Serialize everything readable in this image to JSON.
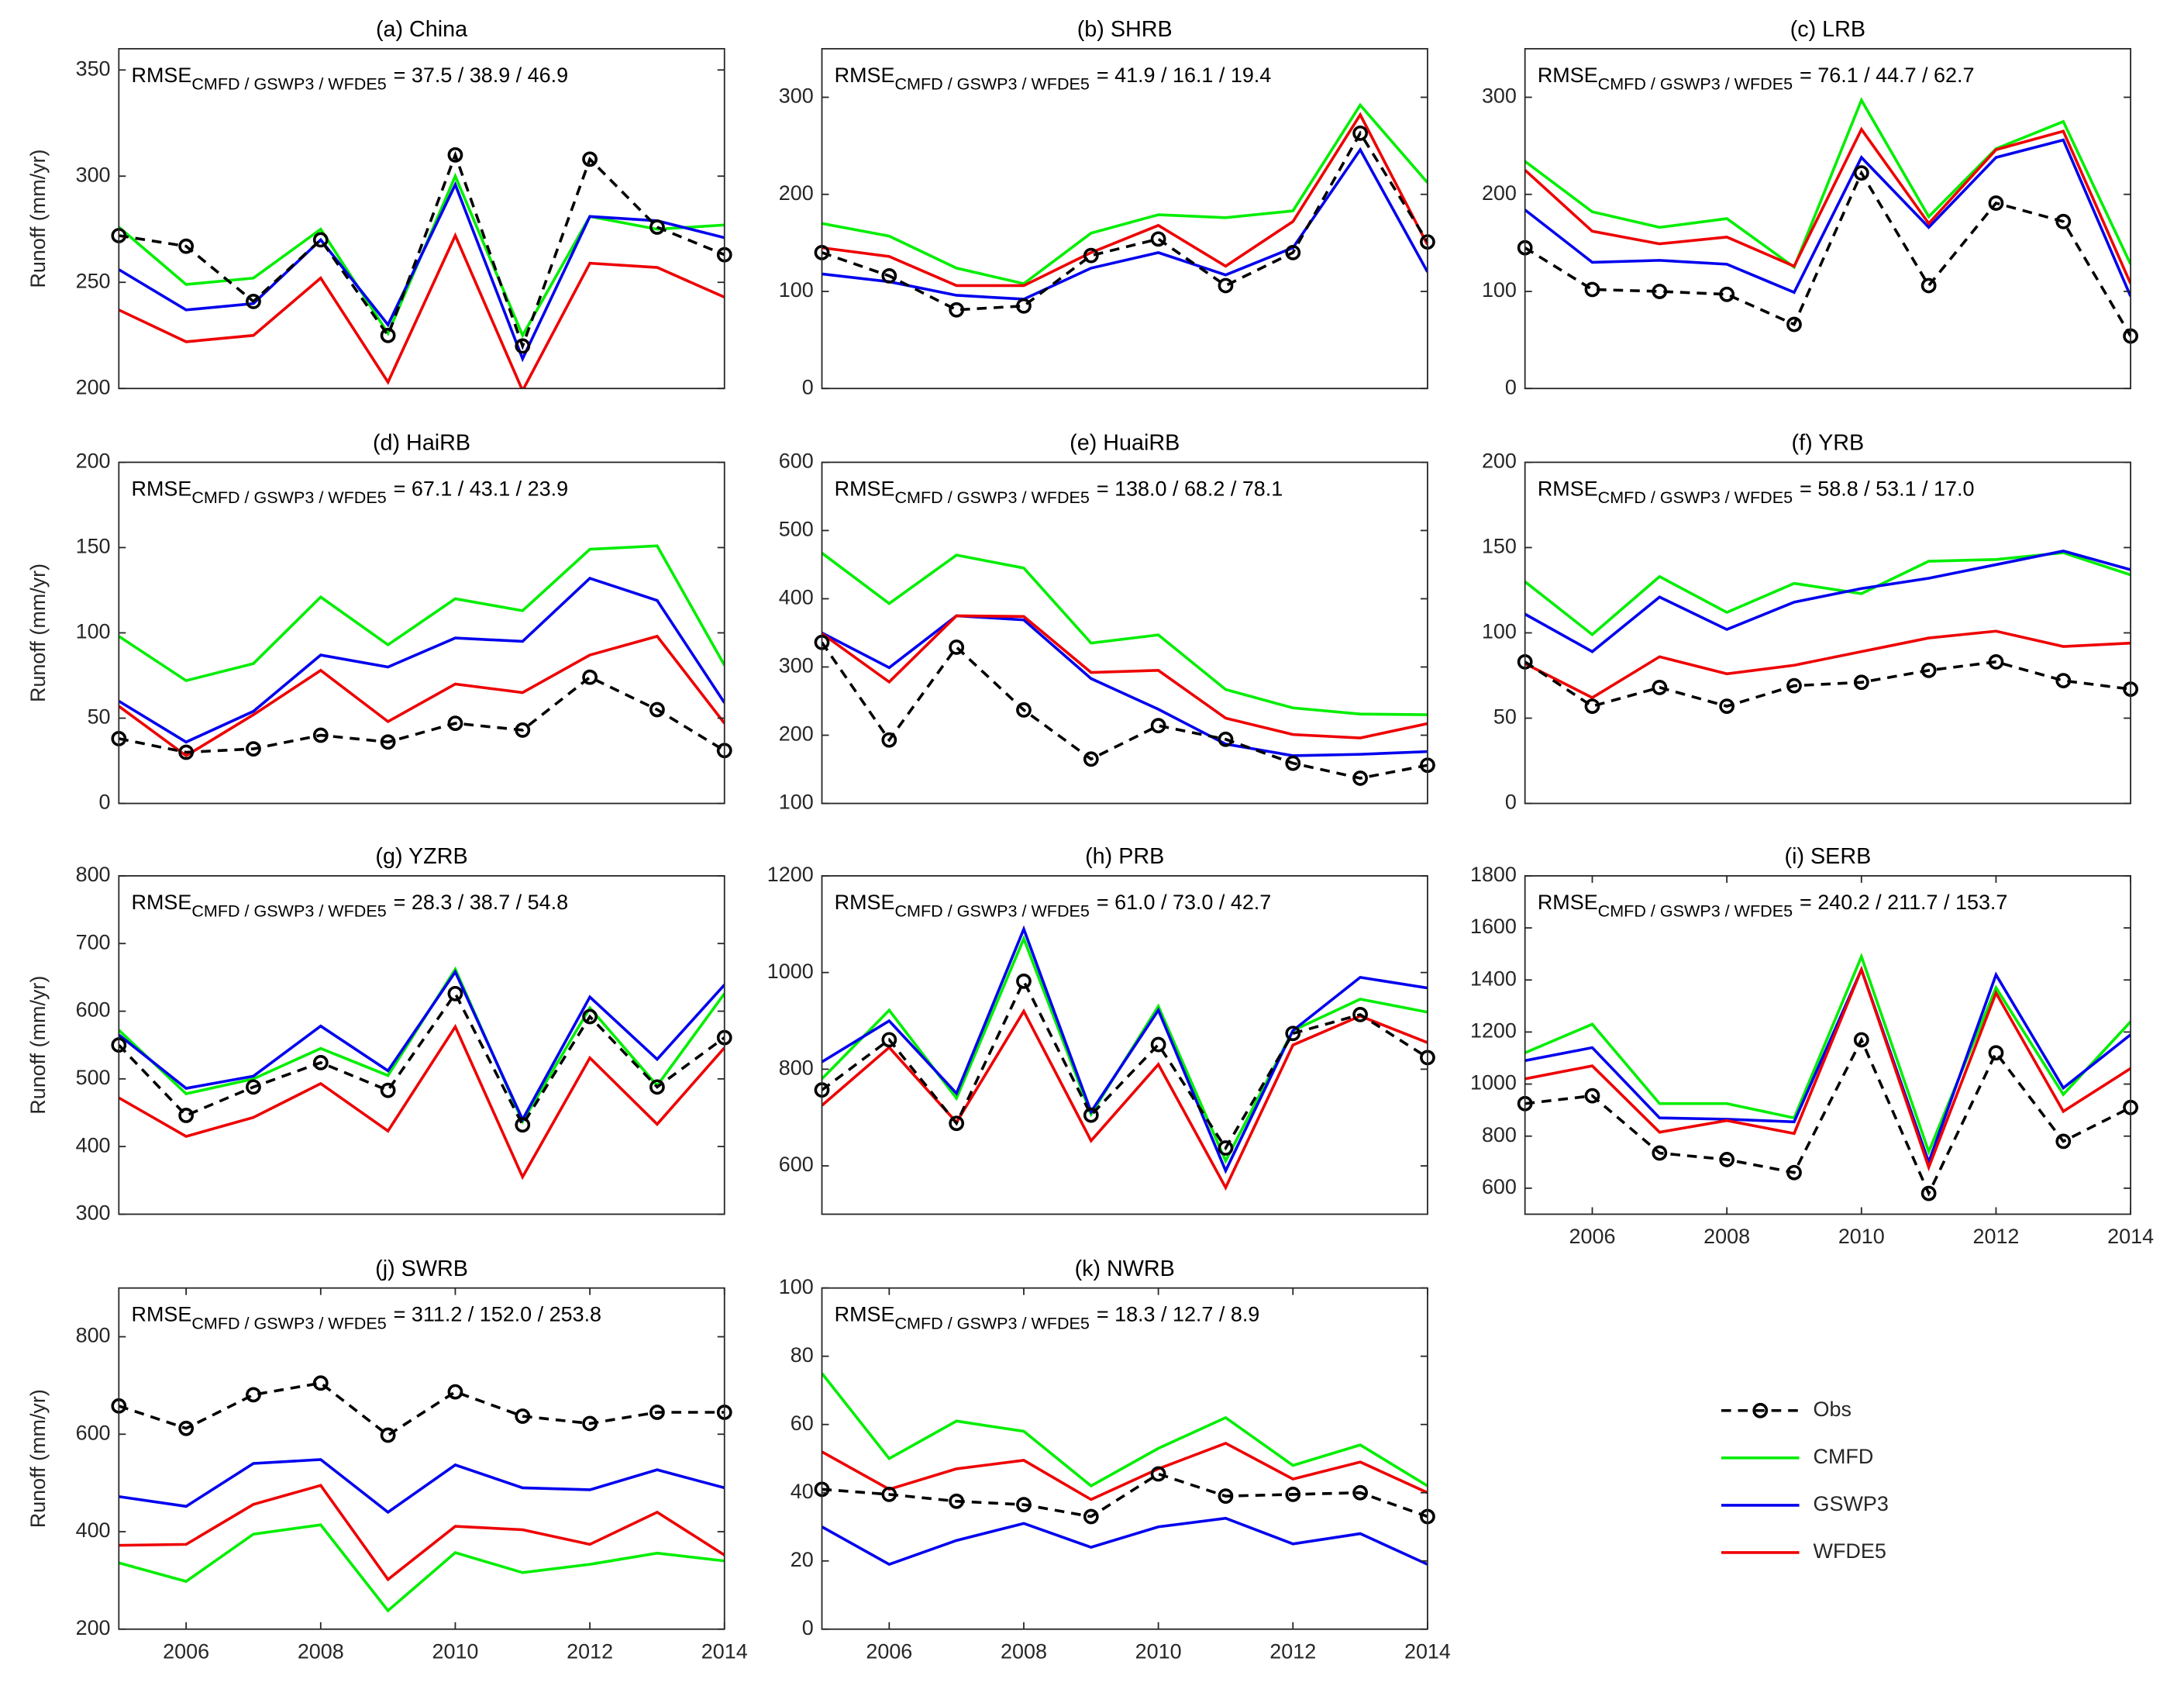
{
  "chart_data": [
    {
      "type": "line",
      "title": "(a) China",
      "ylabel": "Runoff (mm/yr)",
      "annotation": {
        "main": "RMSE",
        "sub": "CMFD / GSWP3 / WFDE5",
        "text": "= 37.5 / 38.9 / 46.9"
      },
      "x": [
        2005,
        2006,
        2007,
        2008,
        2009,
        2010,
        2011,
        2012,
        2013,
        2014
      ],
      "xlim": [
        2005,
        2014
      ],
      "ylim": [
        200,
        360
      ],
      "yticks": [
        200,
        250,
        300,
        350
      ],
      "series": [
        {
          "name": "Obs",
          "color": "#000000",
          "linestyle": "--",
          "marker": "o",
          "values": [
            272,
            267,
            241,
            270,
            225,
            310,
            220,
            308,
            276,
            263
          ]
        },
        {
          "name": "CMFD",
          "color": "#00ee00",
          "values": [
            276,
            249,
            252,
            275,
            226,
            300,
            225,
            281,
            275,
            277
          ]
        },
        {
          "name": "GSWP3",
          "color": "#0000ee",
          "values": [
            256,
            237,
            240,
            270,
            230,
            296,
            214,
            281,
            279,
            271
          ]
        },
        {
          "name": "WFDE5",
          "color": "#ee0000",
          "values": [
            237,
            222,
            225,
            252,
            203,
            272,
            199,
            259,
            257,
            243
          ]
        }
      ]
    },
    {
      "type": "line",
      "title": "(b) SHRB",
      "annotation": {
        "main": "RMSE",
        "sub": "CMFD / GSWP3 / WFDE5",
        "text": "= 41.9 / 16.1 / 19.4"
      },
      "x": [
        2005,
        2006,
        2007,
        2008,
        2009,
        2010,
        2011,
        2012,
        2013,
        2014
      ],
      "xlim": [
        2005,
        2014
      ],
      "ylim": [
        0,
        350
      ],
      "yticks": [
        0,
        100,
        200,
        300
      ],
      "series": [
        {
          "name": "Obs",
          "color": "#000000",
          "linestyle": "--",
          "marker": "o",
          "values": [
            140,
            116,
            81,
            85,
            137,
            154,
            106,
            140,
            263,
            151
          ]
        },
        {
          "name": "CMFD",
          "color": "#00ee00",
          "values": [
            170,
            157,
            124,
            108,
            160,
            179,
            176,
            183,
            292,
            212
          ]
        },
        {
          "name": "GSWP3",
          "color": "#0000ee",
          "values": [
            118,
            110,
            96,
            92,
            124,
            140,
            117,
            145,
            246,
            120
          ]
        },
        {
          "name": "WFDE5",
          "color": "#ee0000",
          "values": [
            145,
            136,
            106,
            106,
            140,
            168,
            126,
            172,
            282,
            148
          ]
        }
      ]
    },
    {
      "type": "line",
      "title": "(c) LRB",
      "annotation": {
        "main": "RMSE",
        "sub": "CMFD / GSWP3 / WFDE5",
        "text": "= 76.1 / 44.7 / 62.7"
      },
      "x": [
        2005,
        2006,
        2007,
        2008,
        2009,
        2010,
        2011,
        2012,
        2013,
        2014
      ],
      "xlim": [
        2005,
        2014
      ],
      "ylim": [
        0,
        350
      ],
      "yticks": [
        0,
        100,
        200,
        300
      ],
      "series": [
        {
          "name": "Obs",
          "color": "#000000",
          "linestyle": "--",
          "marker": "o",
          "values": [
            145,
            102,
            100,
            97,
            66,
            222,
            106,
            191,
            172,
            54
          ]
        },
        {
          "name": "CMFD",
          "color": "#00ee00",
          "values": [
            234,
            182,
            166,
            175,
            125,
            297,
            177,
            247,
            275,
            128
          ]
        },
        {
          "name": "GSWP3",
          "color": "#0000ee",
          "values": [
            184,
            130,
            132,
            128,
            99,
            238,
            166,
            238,
            256,
            95
          ]
        },
        {
          "name": "WFDE5",
          "color": "#ee0000",
          "values": [
            225,
            162,
            149,
            156,
            126,
            267,
            170,
            246,
            265,
            108
          ]
        }
      ]
    },
    {
      "type": "line",
      "title": "(d) HaiRB",
      "ylabel": "Runoff (mm/yr)",
      "annotation": {
        "main": "RMSE",
        "sub": "CMFD / GSWP3 / WFDE5",
        "text": "= 67.1 / 43.1 / 23.9"
      },
      "x": [
        2005,
        2006,
        2007,
        2008,
        2009,
        2010,
        2011,
        2012,
        2013,
        2014
      ],
      "xlim": [
        2005,
        2014
      ],
      "ylim": [
        0,
        200
      ],
      "yticks": [
        0,
        50,
        100,
        150,
        200
      ],
      "series": [
        {
          "name": "Obs",
          "color": "#000000",
          "linestyle": "--",
          "marker": "o",
          "values": [
            38,
            30,
            32,
            40,
            36,
            47,
            43,
            74,
            55,
            31
          ]
        },
        {
          "name": "CMFD",
          "color": "#00ee00",
          "values": [
            98,
            72,
            82,
            121,
            93,
            120,
            113,
            149,
            151,
            81
          ]
        },
        {
          "name": "GSWP3",
          "color": "#0000ee",
          "values": [
            60,
            36,
            54,
            87,
            80,
            97,
            95,
            132,
            119,
            59
          ]
        },
        {
          "name": "WFDE5",
          "color": "#ee0000",
          "values": [
            57,
            28,
            52,
            78,
            48,
            70,
            65,
            87,
            98,
            47
          ]
        }
      ]
    },
    {
      "type": "line",
      "title": "(e) HuaiRB",
      "annotation": {
        "main": "RMSE",
        "sub": "CMFD / GSWP3 / WFDE5",
        "text": "= 138.0 / 68.2 / 78.1"
      },
      "x": [
        2005,
        2006,
        2007,
        2008,
        2009,
        2010,
        2011,
        2012,
        2013,
        2014
      ],
      "xlim": [
        2005,
        2014
      ],
      "ylim": [
        100,
        600
      ],
      "yticks": [
        100,
        200,
        300,
        400,
        500,
        600
      ],
      "series": [
        {
          "name": "Obs",
          "color": "#000000",
          "linestyle": "--",
          "marker": "o",
          "values": [
            336,
            193,
            329,
            237,
            165,
            214,
            194,
            159,
            137,
            156
          ]
        },
        {
          "name": "CMFD",
          "color": "#00ee00",
          "values": [
            467,
            393,
            464,
            445,
            335,
            347,
            267,
            240,
            231,
            230
          ]
        },
        {
          "name": "GSWP3",
          "color": "#0000ee",
          "values": [
            350,
            299,
            375,
            369,
            283,
            238,
            187,
            170,
            172,
            176
          ]
        },
        {
          "name": "WFDE5",
          "color": "#ee0000",
          "values": [
            349,
            278,
            375,
            374,
            292,
            295,
            225,
            201,
            196,
            217
          ]
        }
      ]
    },
    {
      "type": "line",
      "title": "(f) YRB",
      "annotation": {
        "main": "RMSE",
        "sub": "CMFD / GSWP3 / WFDE5",
        "text": "= 58.8 / 53.1 / 17.0"
      },
      "x": [
        2005,
        2006,
        2007,
        2008,
        2009,
        2010,
        2011,
        2012,
        2013,
        2014
      ],
      "xlim": [
        2005,
        2014
      ],
      "ylim": [
        0,
        200
      ],
      "yticks": [
        0,
        50,
        100,
        150,
        200
      ],
      "series": [
        {
          "name": "Obs",
          "color": "#000000",
          "linestyle": "--",
          "marker": "o",
          "values": [
            83,
            57,
            68,
            57,
            69,
            71,
            78,
            83,
            72,
            67
          ]
        },
        {
          "name": "CMFD",
          "color": "#00ee00",
          "values": [
            130,
            99,
            133,
            112,
            129,
            123,
            142,
            143,
            147,
            134
          ]
        },
        {
          "name": "GSWP3",
          "color": "#0000ee",
          "values": [
            111,
            89,
            121,
            102,
            118,
            126,
            132,
            140,
            148,
            137
          ]
        },
        {
          "name": "WFDE5",
          "color": "#ee0000",
          "values": [
            82,
            62,
            86,
            76,
            81,
            89,
            97,
            101,
            92,
            94
          ]
        }
      ]
    },
    {
      "type": "line",
      "title": "(g) YZRB",
      "ylabel": "Runoff (mm/yr)",
      "annotation": {
        "main": "RMSE",
        "sub": "CMFD / GSWP3 / WFDE5",
        "text": "= 28.3 / 38.7 / 54.8"
      },
      "x": [
        2005,
        2006,
        2007,
        2008,
        2009,
        2010,
        2011,
        2012,
        2013,
        2014
      ],
      "xlim": [
        2005,
        2014
      ],
      "ylim": [
        300,
        800
      ],
      "yticks": [
        300,
        400,
        500,
        600,
        700,
        800
      ],
      "series": [
        {
          "name": "Obs",
          "color": "#000000",
          "linestyle": "--",
          "marker": "o",
          "values": [
            550,
            446,
            488,
            524,
            483,
            626,
            432,
            592,
            488,
            561
          ]
        },
        {
          "name": "CMFD",
          "color": "#00ee00",
          "values": [
            572,
            478,
            500,
            545,
            505,
            662,
            437,
            605,
            490,
            626
          ]
        },
        {
          "name": "GSWP3",
          "color": "#0000ee",
          "values": [
            565,
            486,
            504,
            578,
            512,
            658,
            440,
            621,
            529,
            639
          ]
        },
        {
          "name": "WFDE5",
          "color": "#ee0000",
          "values": [
            472,
            415,
            443,
            493,
            423,
            577,
            355,
            531,
            433,
            546
          ]
        }
      ]
    },
    {
      "type": "line",
      "title": "(h) PRB",
      "annotation": {
        "main": "RMSE",
        "sub": "CMFD / GSWP3 / WFDE5",
        "text": "= 61.0 / 73.0 / 42.7"
      },
      "x": [
        2005,
        2006,
        2007,
        2008,
        2009,
        2010,
        2011,
        2012,
        2013,
        2014
      ],
      "xlim": [
        2005,
        2014
      ],
      "ylim": [
        500,
        1200
      ],
      "yticks": [
        600,
        800,
        1000,
        1200
      ],
      "series": [
        {
          "name": "Obs",
          "color": "#000000",
          "linestyle": "--",
          "marker": "o",
          "values": [
            757,
            861,
            688,
            982,
            705,
            851,
            637,
            874,
            913,
            824
          ]
        },
        {
          "name": "CMFD",
          "color": "#00ee00",
          "values": [
            780,
            922,
            740,
            1070,
            707,
            930,
            610,
            880,
            945,
            918
          ]
        },
        {
          "name": "GSWP3",
          "color": "#0000ee",
          "values": [
            815,
            900,
            750,
            1090,
            712,
            922,
            590,
            880,
            990,
            968
          ]
        },
        {
          "name": "WFDE5",
          "color": "#ee0000",
          "values": [
            725,
            845,
            690,
            920,
            652,
            810,
            555,
            850,
            910,
            855
          ]
        }
      ]
    },
    {
      "type": "line",
      "title": "(i) SERB",
      "annotation": {
        "main": "RMSE",
        "sub": "CMFD / GSWP3 / WFDE5",
        "text": "= 240.2 / 211.7 / 153.7"
      },
      "x": [
        2005,
        2006,
        2007,
        2008,
        2009,
        2010,
        2011,
        2012,
        2013,
        2014
      ],
      "xlim": [
        2005,
        2014
      ],
      "xticks": [
        2006,
        2008,
        2010,
        2012,
        2014
      ],
      "ylim": [
        500,
        1800
      ],
      "yticks": [
        600,
        800,
        1000,
        1200,
        1400,
        1600,
        1800
      ],
      "series": [
        {
          "name": "Obs",
          "color": "#000000",
          "linestyle": "--",
          "marker": "o",
          "values": [
            925,
            955,
            735,
            710,
            660,
            1170,
            580,
            1120,
            780,
            910
          ]
        },
        {
          "name": "CMFD",
          "color": "#00ee00",
          "values": [
            1120,
            1230,
            925,
            925,
            870,
            1490,
            740,
            1370,
            960,
            1240
          ]
        },
        {
          "name": "GSWP3",
          "color": "#0000ee",
          "values": [
            1090,
            1140,
            870,
            865,
            855,
            1440,
            700,
            1420,
            985,
            1190
          ]
        },
        {
          "name": "WFDE5",
          "color": "#ee0000",
          "values": [
            1020,
            1070,
            815,
            860,
            810,
            1440,
            680,
            1350,
            895,
            1060
          ]
        }
      ]
    },
    {
      "type": "line",
      "title": "(j) SWRB",
      "ylabel": "Runoff (mm/yr)",
      "annotation": {
        "main": "RMSE",
        "sub": "CMFD / GSWP3 / WFDE5",
        "text": "= 311.2 / 152.0 / 253.8"
      },
      "x": [
        2005,
        2006,
        2007,
        2008,
        2009,
        2010,
        2011,
        2012,
        2013,
        2014
      ],
      "xlim": [
        2005,
        2014
      ],
      "xticks": [
        2006,
        2008,
        2010,
        2012,
        2014
      ],
      "ylim": [
        200,
        900
      ],
      "yticks": [
        200,
        400,
        600,
        800
      ],
      "series": [
        {
          "name": "Obs",
          "color": "#000000",
          "linestyle": "--",
          "marker": "o",
          "values": [
            658,
            612,
            681,
            705,
            598,
            687,
            637,
            622,
            645,
            645
          ]
        },
        {
          "name": "CMFD",
          "color": "#00ee00",
          "values": [
            336,
            298,
            395,
            414,
            238,
            357,
            316,
            333,
            356,
            340
          ]
        },
        {
          "name": "GSWP3",
          "color": "#0000ee",
          "values": [
            472,
            452,
            540,
            548,
            440,
            537,
            490,
            486,
            527,
            490
          ]
        },
        {
          "name": "WFDE5",
          "color": "#ee0000",
          "values": [
            372,
            374,
            456,
            495,
            302,
            411,
            404,
            374,
            440,
            352
          ]
        }
      ]
    },
    {
      "type": "line",
      "title": "(k) NWRB",
      "annotation": {
        "main": "RMSE",
        "sub": "CMFD / GSWP3 / WFDE5",
        "text": "= 18.3 / 12.7 / 8.9"
      },
      "x": [
        2005,
        2006,
        2007,
        2008,
        2009,
        2010,
        2011,
        2012,
        2013,
        2014
      ],
      "xlim": [
        2005,
        2014
      ],
      "xticks": [
        2006,
        2008,
        2010,
        2012,
        2014
      ],
      "ylim": [
        0,
        100
      ],
      "yticks": [
        0,
        20,
        40,
        60,
        80,
        100
      ],
      "series": [
        {
          "name": "Obs",
          "color": "#000000",
          "linestyle": "--",
          "marker": "o",
          "values": [
            41,
            39.5,
            37.5,
            36.5,
            33,
            45.5,
            39,
            39.5,
            40,
            33
          ]
        },
        {
          "name": "CMFD",
          "color": "#00ee00",
          "values": [
            75,
            50,
            61,
            58,
            42,
            53,
            62,
            48,
            54,
            42
          ]
        },
        {
          "name": "GSWP3",
          "color": "#0000ee",
          "values": [
            30,
            19,
            26,
            31,
            24,
            30,
            32.5,
            25,
            28,
            19
          ]
        },
        {
          "name": "WFDE5",
          "color": "#ee0000",
          "values": [
            52,
            41,
            47,
            49.5,
            38,
            47,
            54.5,
            44,
            49,
            40
          ]
        }
      ]
    }
  ]
}
